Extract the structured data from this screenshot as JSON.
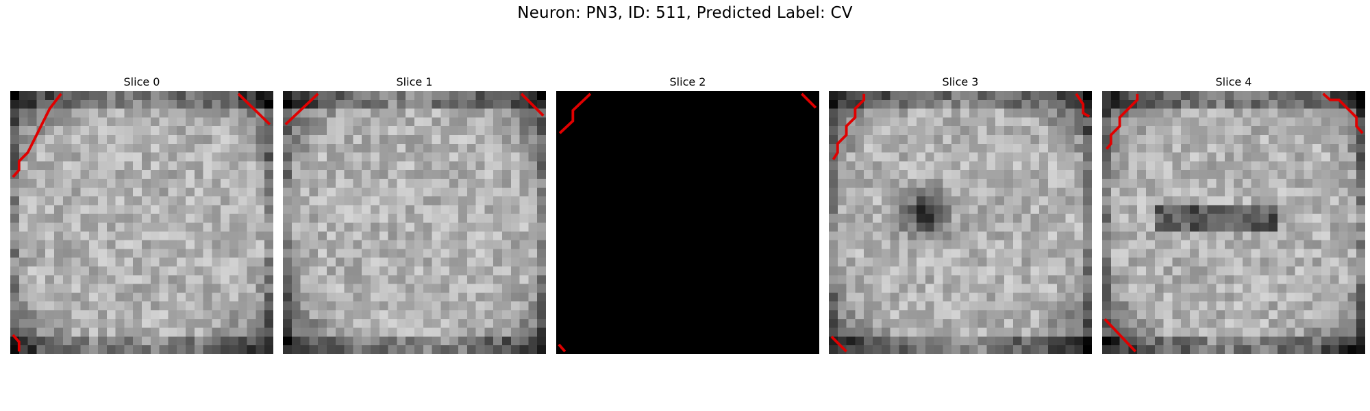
{
  "figure": {
    "title": "Neuron: PN3, ID: 511, Predicted Label: CV"
  },
  "panels": [
    {
      "title": "Slice 0",
      "fill": "noise",
      "blob": "none"
    },
    {
      "title": "Slice 1",
      "fill": "noise",
      "blob": "none"
    },
    {
      "title": "Slice 2",
      "fill": "black",
      "blob": "none"
    },
    {
      "title": "Slice 3",
      "fill": "noise",
      "blob": "dark-spot"
    },
    {
      "title": "Slice 4",
      "fill": "noise",
      "blob": "dark-bar"
    }
  ],
  "colors": {
    "contour": "#e00000",
    "background": "#ffffff"
  }
}
